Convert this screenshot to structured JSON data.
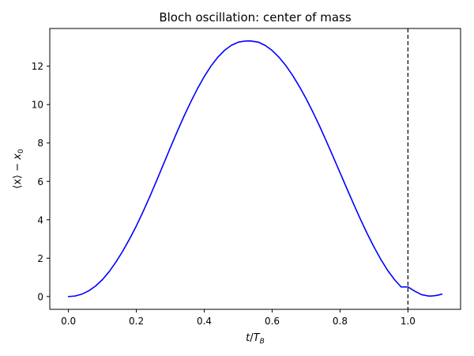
{
  "chart_data": {
    "type": "line",
    "title": "Bloch oscillation: center of mass",
    "xlabel": {
      "var": "t",
      "sep": "/",
      "base": "T",
      "sub": "B"
    },
    "ylabel": {
      "lhs": "⟨x⟩",
      "op": "−",
      "base": "x",
      "sub": "0"
    },
    "xlim": [
      -0.055,
      1.155
    ],
    "ylim": [
      -0.665,
      13.965
    ],
    "x_ticks": [
      0.0,
      0.2,
      0.4,
      0.6,
      0.8,
      1.0
    ],
    "x_tick_labels": [
      "0.0",
      "0.2",
      "0.4",
      "0.6",
      "0.8",
      "1.0"
    ],
    "y_ticks": [
      0,
      2,
      4,
      6,
      8,
      10,
      12
    ],
    "y_tick_labels": [
      "0",
      "2",
      "4",
      "6",
      "8",
      "10",
      "12"
    ],
    "grid": false,
    "series": [
      {
        "color": "#0000ff",
        "x": [
          0.0,
          0.02,
          0.04,
          0.06,
          0.08,
          0.1,
          0.12,
          0.14,
          0.16,
          0.18,
          0.2,
          0.22,
          0.24,
          0.26,
          0.28,
          0.3,
          0.32,
          0.34,
          0.36,
          0.38,
          0.4,
          0.42,
          0.44,
          0.46,
          0.48,
          0.5,
          0.52,
          0.535,
          0.56,
          0.58,
          0.6,
          0.62,
          0.64,
          0.66,
          0.68,
          0.7,
          0.72,
          0.74,
          0.76,
          0.78,
          0.8,
          0.82,
          0.84,
          0.86,
          0.88,
          0.9,
          0.92,
          0.94,
          0.96,
          0.98,
          1.0,
          1.02,
          1.04,
          1.06,
          1.07,
          1.08,
          1.09,
          1.1
        ],
        "y": [
          0.0,
          0.03,
          0.13,
          0.3,
          0.55,
          0.88,
          1.3,
          1.8,
          2.37,
          3.0,
          3.68,
          4.43,
          5.22,
          6.05,
          6.9,
          7.75,
          8.58,
          9.38,
          10.13,
          10.83,
          11.46,
          12.01,
          12.47,
          12.83,
          13.09,
          13.25,
          13.31,
          13.32,
          13.25,
          13.08,
          12.82,
          12.47,
          12.04,
          11.53,
          10.95,
          10.31,
          9.61,
          8.87,
          8.08,
          7.27,
          6.45,
          5.63,
          4.82,
          4.03,
          3.28,
          2.58,
          1.94,
          1.37,
          0.89,
          0.5,
          0.5,
          0.28,
          0.1,
          0.03,
          0.03,
          0.05,
          0.08,
          0.13
        ]
      }
    ],
    "vlines": [
      {
        "x": 1.0,
        "color": "#000000",
        "style": "dashed"
      }
    ]
  }
}
